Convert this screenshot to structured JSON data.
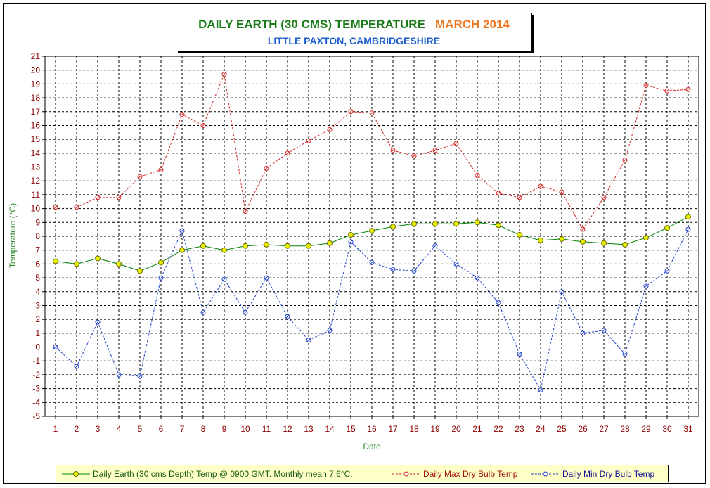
{
  "title": {
    "main": "DAILY EARTH (30 CMS) TEMPERATURE",
    "month": "MARCH 2014",
    "subtitle": "LITTLE PAXTON, CAMBRIDGESHIRE"
  },
  "colors": {
    "earth_line": "#008000",
    "earth_marker_fill": "#e8f000",
    "max_line": "#d02020",
    "min_line": "#1e40c8",
    "axis_label": "#2a8a2a",
    "tick_label": "#8b0000",
    "legend_bg": "#ffffc8"
  },
  "chart_data": {
    "type": "line",
    "xlabel": "Date",
    "ylabel": "Temperature (°C)",
    "xlim": [
      1,
      31
    ],
    "ylim": [
      -5,
      21
    ],
    "grid": true,
    "legend": "bottom",
    "x": [
      1,
      2,
      3,
      4,
      5,
      6,
      7,
      8,
      9,
      10,
      11,
      12,
      13,
      14,
      15,
      16,
      17,
      18,
      19,
      20,
      21,
      22,
      23,
      24,
      25,
      26,
      27,
      28,
      29,
      30,
      31
    ],
    "yticks": [
      -5,
      -4,
      -3,
      -2,
      -1,
      0,
      1,
      2,
      3,
      4,
      5,
      6,
      7,
      8,
      9,
      10,
      11,
      12,
      13,
      14,
      15,
      16,
      17,
      18,
      19,
      20,
      21
    ],
    "series": [
      {
        "name": "Daily Earth (30 cms Depth) Temp @ 0900 GMT. Monthly mean 7.6°C.",
        "values": [
          6.2,
          6.0,
          6.4,
          6.0,
          5.5,
          6.1,
          7.0,
          7.3,
          7.0,
          7.3,
          7.4,
          7.3,
          7.3,
          7.5,
          8.1,
          8.4,
          8.7,
          8.9,
          8.9,
          8.9,
          9.0,
          8.8,
          8.1,
          7.7,
          7.8,
          7.6,
          7.5,
          7.4,
          7.9,
          8.6,
          9.4
        ]
      },
      {
        "name": "Daily Max Dry Bulb Temp",
        "values": [
          10.1,
          10.1,
          10.8,
          10.8,
          12.3,
          12.8,
          16.8,
          16.0,
          19.7,
          9.8,
          12.9,
          14.0,
          14.9,
          15.7,
          17.0,
          16.9,
          14.2,
          13.8,
          14.2,
          14.7,
          12.4,
          11.1,
          10.8,
          11.6,
          11.2,
          8.5,
          10.8,
          13.5,
          18.9,
          18.5,
          18.6
        ]
      },
      {
        "name": "Daily Min Dry Bulb Temp",
        "values": [
          0.0,
          -1.4,
          1.8,
          -2.0,
          -2.1,
          5.0,
          8.4,
          2.5,
          4.9,
          2.5,
          5.0,
          2.2,
          0.5,
          1.2,
          7.6,
          6.1,
          5.6,
          5.5,
          7.3,
          6.0,
          5.0,
          3.2,
          -0.5,
          -3.1,
          4.0,
          1.0,
          1.2,
          -0.5,
          4.4,
          5.5,
          8.5
        ]
      }
    ]
  }
}
